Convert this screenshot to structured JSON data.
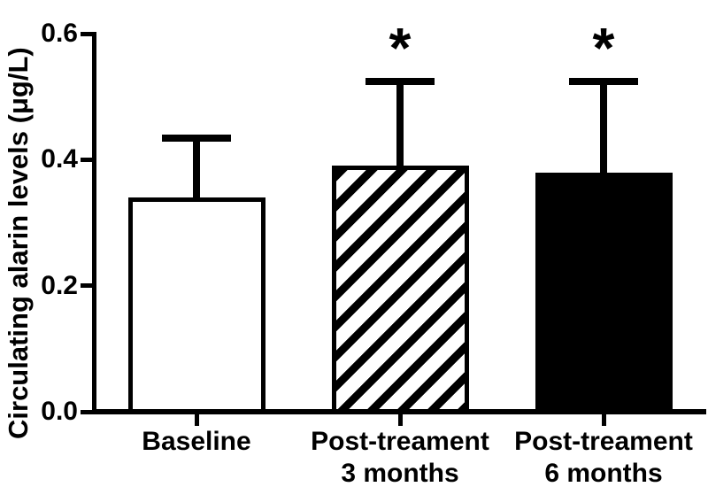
{
  "figure": {
    "background_color": "#ffffff",
    "ink_color": "#000000"
  },
  "chart_data": {
    "type": "bar",
    "title": "",
    "xlabel": "",
    "ylabel": "Circulating alarin levels (μg/L)",
    "ylim": [
      0,
      0.6
    ],
    "yticks": [
      "0.0",
      "0.2",
      "0.4",
      "0.6"
    ],
    "grid": false,
    "legend": false,
    "categories": [
      "Baseline",
      "Post-treament 3 months",
      "Post-treament 6 months"
    ],
    "category_lines": [
      [
        "Baseline",
        ""
      ],
      [
        "Post-treament",
        "3 months"
      ],
      [
        "Post-treament",
        "6 months"
      ]
    ],
    "values": [
      0.34,
      0.39,
      0.38
    ],
    "error_sd": [
      0.1,
      0.14,
      0.15
    ],
    "error_direction": "upper-only",
    "annotations": [
      "",
      "*",
      "*"
    ],
    "bar_styles": [
      "white-outline",
      "diagonal-hatch",
      "solid-black"
    ]
  }
}
